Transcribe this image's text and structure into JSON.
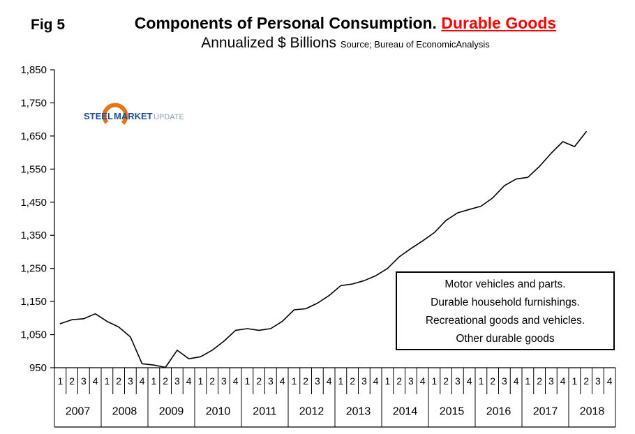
{
  "fig_label": "Fig 5",
  "title": {
    "main": "Components of Personal Consumption. ",
    "highlight": "Durable Goods",
    "subtitle": "Annualized $ Billions",
    "source": "Source; Bureau of EconomicAnalysis"
  },
  "logo": {
    "steel": "STEEL",
    "market": "MARKET",
    "update": "UPDATE"
  },
  "legend_box": {
    "lines": [
      "Motor vehicles and parts.",
      "Durable household furnishings.",
      "Recreational goods and vehicles.",
      "Other durable goods"
    ]
  },
  "colors": {
    "highlight_red": "#ff0000",
    "line": "#000000",
    "logo_orange": "#e8750f",
    "logo_blue": "#1b4f9c",
    "logo_gray_blue": "#8ba0b5"
  },
  "chart_data": {
    "type": "line",
    "title": "Components of Personal Consumption. Durable Goods",
    "subtitle": "Annualized $ Billions",
    "source": "Source; Bureau of EconomicAnalysis",
    "ylabel": "Annualized $ Billions",
    "ylim": [
      950,
      1850
    ],
    "ytick_interval": 100,
    "grid": false,
    "legend_position": "inside-right",
    "series_components": [
      "Motor vehicles and parts.",
      "Durable household furnishings.",
      "Recreational goods and vehicles.",
      "Other durable goods"
    ],
    "years": [
      "2007",
      "2008",
      "2009",
      "2010",
      "2011",
      "2012",
      "2013",
      "2014",
      "2015",
      "2016",
      "2017",
      "2018"
    ],
    "quarter_labels": [
      "1",
      "2",
      "3",
      "4"
    ],
    "values": [
      1083,
      1095,
      1098,
      1113,
      1090,
      1073,
      1043,
      962,
      958,
      951,
      1003,
      977,
      983,
      1003,
      1030,
      1063,
      1068,
      1063,
      1068,
      1090,
      1125,
      1128,
      1145,
      1168,
      1198,
      1203,
      1213,
      1228,
      1250,
      1285,
      1310,
      1333,
      1358,
      1395,
      1418,
      1428,
      1438,
      1463,
      1500,
      1520,
      1525,
      1558,
      1598,
      1633,
      1618,
      1663
    ],
    "line_color": "#000000"
  }
}
